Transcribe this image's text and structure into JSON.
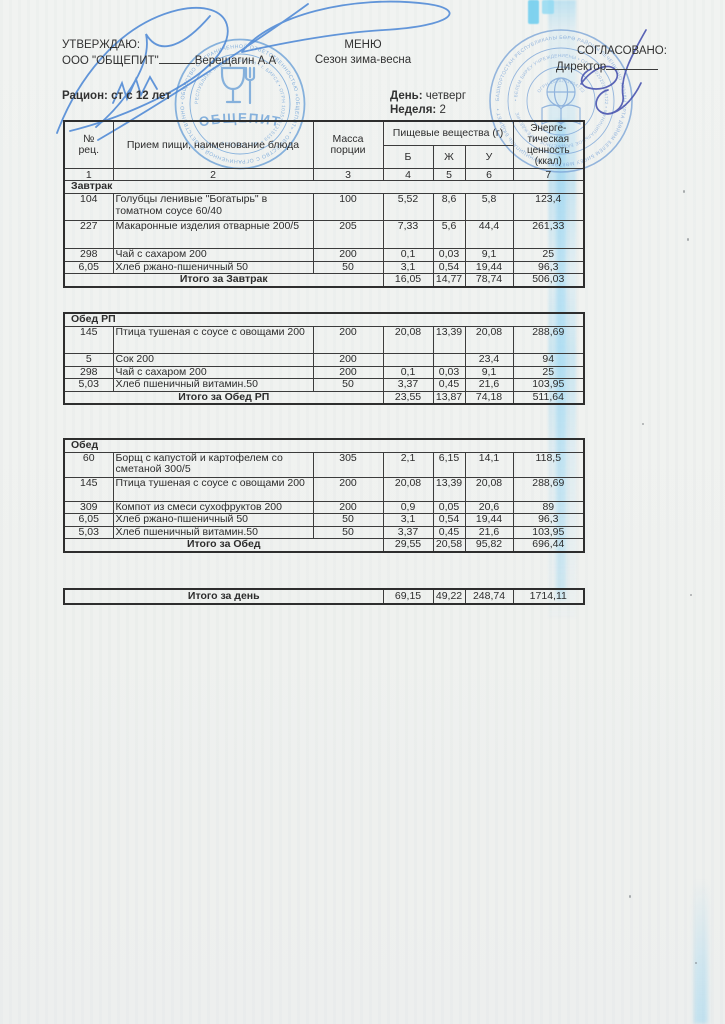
{
  "header": {
    "approve_label": "УТВЕРЖДАЮ:",
    "approve_org": "ООО \"ОБЩЕПИТ\"",
    "approve_name": "Верещагин А.А",
    "menu_title": "МЕНЮ",
    "menu_season": "Сезон зима-весна",
    "agree_label": "СОГЛАСОВАНО:",
    "agree_role": "Директор",
    "ration_label": "Рацион:",
    "ration_value": "ст с 12 лет",
    "day_label": "День:",
    "day_value": "четверг",
    "week_label": "Неделя:",
    "week_value": "2"
  },
  "table": {
    "columns": {
      "num": "№|рец.",
      "dish": "Прием пищи, наименование блюда",
      "mass": "Масса|порции",
      "nutrients": "Пищевые вещества (г)",
      "b": "Б",
      "f": "Ж",
      "c": "У",
      "energy": "Энерге-|тическая|ценность|(ккал)"
    },
    "col_numbers": [
      "1",
      "2",
      "3",
      "4",
      "5",
      "6",
      "7"
    ],
    "sections": [
      {
        "title": "Завтрак",
        "rows": [
          {
            "num": "104",
            "dish": "Голубцы ленивые \"Богатырь\" в томатном соусе 60/40",
            "mass": "100",
            "b": "5,52",
            "f": "8,6",
            "c": "5,8",
            "kcal": "123,4"
          },
          {
            "num": "227",
            "dish": "Макаронные изделия отварные 200/5",
            "mass": "205",
            "b": "7,33",
            "f": "5,6",
            "c": "44,4",
            "kcal": "261,33"
          },
          {
            "num": "298",
            "dish": "Чай с сахаром 200",
            "mass": "200",
            "b": "0,1",
            "f": "0,03",
            "c": "9,1",
            "kcal": "25"
          },
          {
            "num": "6,05",
            "dish": "Хлеб ржано-пшеничный 50",
            "mass": "50",
            "b": "3,1",
            "f": "0,54",
            "c": "19,44",
            "kcal": "96,3"
          }
        ],
        "total_label": "Итого за Завтрак",
        "total": {
          "b": "16,05",
          "f": "14,77",
          "c": "78,74",
          "kcal": "506,03"
        }
      },
      {
        "title": "Обед РП",
        "rows": [
          {
            "num": "145",
            "dish": "Птица тушеная с соусе с овощами 200",
            "mass": "200",
            "b": "20,08",
            "f": "13,39",
            "c": "20,08",
            "kcal": "288,69"
          },
          {
            "num": "5",
            "dish": "Сок 200",
            "mass": "200",
            "b": "",
            "f": "",
            "c": "23,4",
            "kcal": "94"
          },
          {
            "num": "298",
            "dish": "Чай с сахаром 200",
            "mass": "200",
            "b": "0,1",
            "f": "0,03",
            "c": "9,1",
            "kcal": "25"
          },
          {
            "num": "5,03",
            "dish": "Хлеб пшеничный витамин.50",
            "mass": "50",
            "b": "3,37",
            "f": "0,45",
            "c": "21,6",
            "kcal": "103,95"
          }
        ],
        "total_label": "Итого за Обед РП",
        "total": {
          "b": "23,55",
          "f": "13,87",
          "c": "74,18",
          "kcal": "511,64"
        }
      },
      {
        "title": "Обед",
        "rows": [
          {
            "num": "60",
            "dish": "Борщ с капустой и картофелем со сметаной 300/5",
            "mass": "305",
            "b": "2,1",
            "f": "6,15",
            "c": "14,1",
            "kcal": "118,5"
          },
          {
            "num": "145",
            "dish": "Птица тушеная с соусе с овощами 200",
            "mass": "200",
            "b": "20,08",
            "f": "13,39",
            "c": "20,08",
            "kcal": "288,69"
          },
          {
            "num": "309",
            "dish": "Компот из смеси сухофруктов 200",
            "mass": "200",
            "b": "0,9",
            "f": "0,05",
            "c": "20,6",
            "kcal": "89"
          },
          {
            "num": "6,05",
            "dish": "Хлеб ржано-пшеничный 50",
            "mass": "50",
            "b": "3,1",
            "f": "0,54",
            "c": "19,44",
            "kcal": "96,3"
          },
          {
            "num": "5,03",
            "dish": "Хлеб пшеничный витамин.50",
            "mass": "50",
            "b": "3,37",
            "f": "0,45",
            "c": "21,6",
            "kcal": "103,95"
          }
        ],
        "total_label": "Итого за Обед",
        "total": {
          "b": "29,55",
          "f": "20,58",
          "c": "95,82",
          "kcal": "696,44"
        }
      }
    ],
    "day_total": {
      "label": "Итого за день",
      "b": "69,15",
      "f": "49,22",
      "c": "248,74",
      "kcal": "1714,11"
    }
  },
  "stamps": {
    "blue": "#6fa3d8",
    "left": {
      "outer_ring": "• ОБЩЕСТВО С ОГРАНИЧЕННОЙ ОТВЕТСТВЕННОСТЬЮ «ОБЩЕПИТ» • ОБЩЕСТВО С ОГРАНИЧЕННОЙ ОТВЕТСТВЕННОСТЬЮ",
      "inner_ring": "РЕСПУБЛИКА БАШКОРТОСТАН • г. БИРСК • ОГРН 1025701315159 •",
      "name": "ОБЩЕПИТ",
      "digits": "0257013159"
    },
    "right": {
      "outer_ring": "БАШКОРТОСТАН РЕСПУБЛИКАҺЫ БӨРӨ РАЙОНЫ ЛЕЧЕНКИНО АУЫЛЫ УРТА ДӨЙӨМ БЕЛЕМ БИРЕУ МӘКТӘБЕ • МУНИЦИПАЛЬ БЮДЖЕТ •",
      "mid_ring": "• БЕЛЕМ БИРЕУ УЧРЕЖДЕНИЕҺЫ • ОГРН 1020201004722 • МУНИЦИПАЛЬНОЕ БЮДЖЕТНОЕ УЧРЕЖДЕНИЕ",
      "inner_ring": "ОГРН 1020201004722"
    }
  }
}
